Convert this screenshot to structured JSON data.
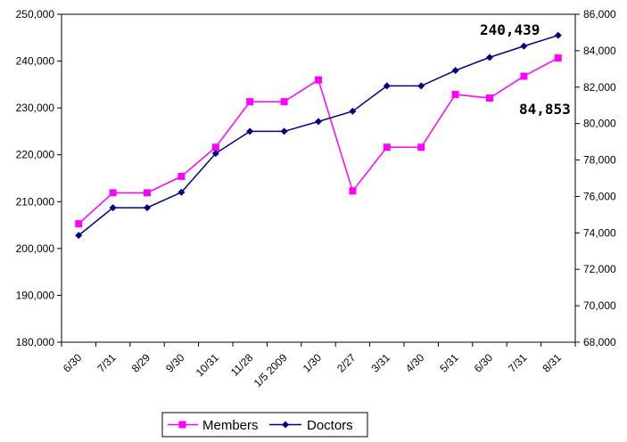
{
  "chart_data": {
    "type": "line",
    "categories": [
      "6/30",
      "7/31",
      "8/29",
      "9/30",
      "10/31",
      "11/28",
      "1/5 2009",
      "1/30",
      "2/27",
      "3/31",
      "4/30",
      "5/31",
      "6/30",
      "7/31",
      "8/31"
    ],
    "y_left": {
      "min": 180000,
      "max": 250000,
      "step": 10000,
      "ticks": [
        "180,000",
        "190,000",
        "200,000",
        "210,000",
        "220,000",
        "230,000",
        "240,000",
        "250,000"
      ]
    },
    "y_right": {
      "min": 68000,
      "max": 86000,
      "step": 2000,
      "ticks": [
        "68,000",
        "70,000",
        "72,000",
        "74,000",
        "76,000",
        "78,000",
        "80,000",
        "82,000",
        "84,000",
        "86,000"
      ]
    },
    "series": [
      {
        "name": "Members",
        "axis": "right",
        "color": "#ff00ff",
        "marker": "square",
        "values": [
          74500,
          76200,
          76200,
          77100,
          78700,
          81200,
          81200,
          82400,
          76300,
          78700,
          78700,
          81600,
          81400,
          82600,
          83600
        ]
      },
      {
        "name": "Doctors",
        "axis": "left",
        "color": "#000080",
        "marker": "diamond",
        "values": [
          202800,
          208700,
          208700,
          212000,
          220300,
          225000,
          225000,
          227100,
          229300,
          234700,
          234700,
          238000,
          240800,
          243200,
          245500
        ]
      }
    ],
    "annotations": [
      "240,439",
      "84,853"
    ],
    "grid": false,
    "legend": "bottom"
  }
}
